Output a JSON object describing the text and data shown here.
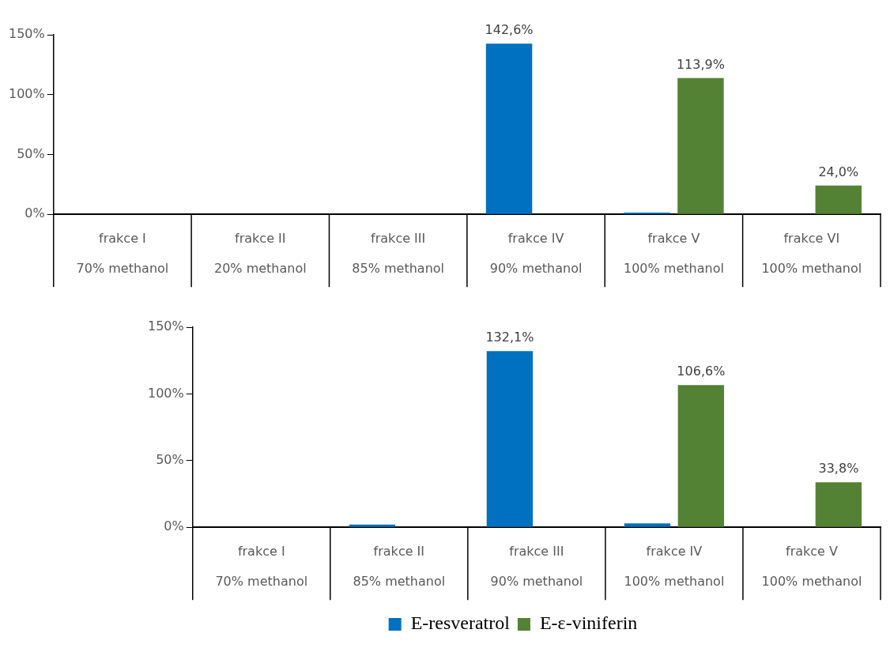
{
  "chart_data": [
    {
      "type": "bar",
      "categories": [
        "frakce I\n70% methanol",
        "frakce II\n20% methanol",
        "frakce III\n85% methanol",
        "frakce IV\n90% methanol",
        "frakce V\n100% methanol",
        "frakce VI\n100% methanol"
      ],
      "series": [
        {
          "color": "#0070c0",
          "values": [
            0,
            0,
            0,
            142.6,
            1.5,
            0
          ],
          "value_labels": [
            null,
            null,
            null,
            "142,6%",
            null,
            null
          ]
        },
        {
          "color": "#548235",
          "values": [
            0,
            0,
            0,
            0,
            113.9,
            24.0
          ],
          "value_labels": [
            null,
            null,
            null,
            null,
            "113,9%",
            "24,0%"
          ]
        }
      ],
      "ylim": [
        0,
        150
      ],
      "yticks": [
        {
          "value": 0,
          "label": "0%"
        },
        {
          "value": 50,
          "label": "50%"
        },
        {
          "value": 100,
          "label": "100%"
        },
        {
          "value": 150,
          "label": "150%"
        }
      ],
      "grid": false,
      "legend": false
    },
    {
      "type": "bar",
      "categories": [
        "frakce I\n70% methanol",
        "frakce II\n85% methanol",
        "frakce III\n90% methanol",
        "frakce IV\n100% methanol",
        "frakce V\n100% methanol"
      ],
      "series": [
        {
          "name": "E-resveratrol",
          "color": "#0070c0",
          "values": [
            0,
            2,
            132.1,
            3,
            0
          ],
          "value_labels": [
            null,
            null,
            "132,1%",
            null,
            null
          ]
        },
        {
          "name": "E-ε-viniferin",
          "color": "#548235",
          "values": [
            0,
            0,
            0,
            106.6,
            33.8
          ],
          "value_labels": [
            null,
            null,
            null,
            "106,6%",
            "33,8%"
          ]
        }
      ],
      "ylim": [
        0,
        150
      ],
      "yticks": [
        {
          "value": 0,
          "label": "0%"
        },
        {
          "value": 50,
          "label": "50%"
        },
        {
          "value": 100,
          "label": "100%"
        },
        {
          "value": 150,
          "label": "150%"
        }
      ],
      "grid": false,
      "legend": "bottom"
    }
  ]
}
